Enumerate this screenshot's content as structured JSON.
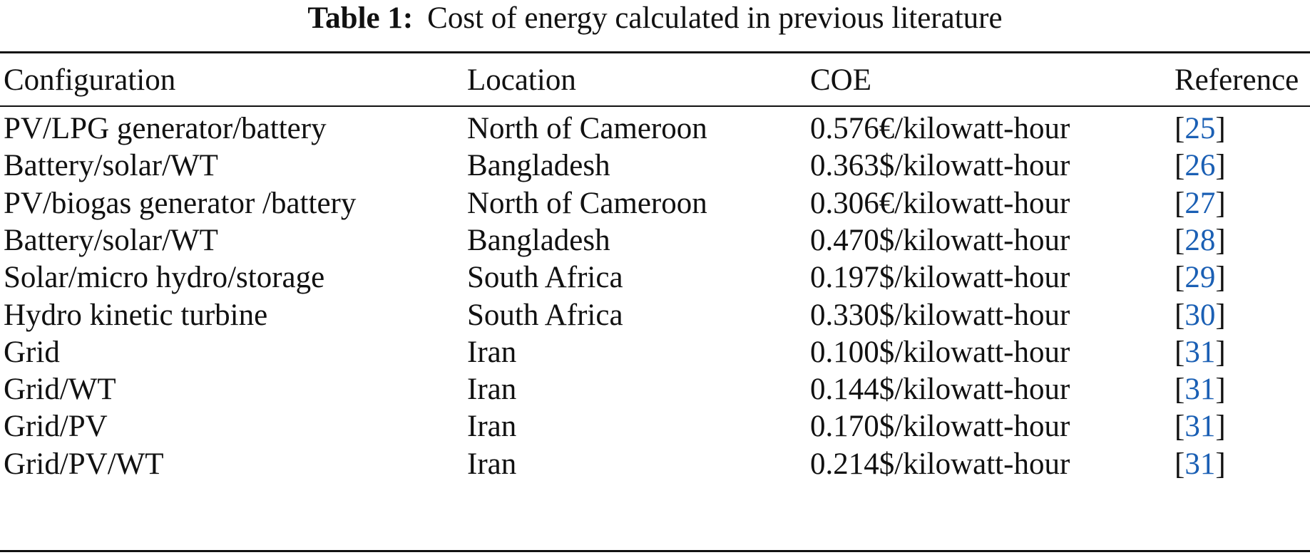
{
  "table": {
    "caption_label": "Table 1:",
    "caption_text": "Cost of energy calculated in previous literature",
    "headers": [
      "Configuration",
      "Location",
      "COE",
      "Reference"
    ],
    "rows": [
      {
        "configuration": "PV/LPG generator/battery",
        "location": "North of Cameroon",
        "coe": "0.576€/kilowatt-hour",
        "ref": "25"
      },
      {
        "configuration": "Battery/solar/WT",
        "location": "Bangladesh",
        "coe": "0.363$/kilowatt-hour",
        "ref": "26"
      },
      {
        "configuration": "PV/biogas generator /battery",
        "location": "North of Cameroon",
        "coe": "0.306€/kilowatt-hour",
        "ref": "27"
      },
      {
        "configuration": "Battery/solar/WT",
        "location": "Bangladesh",
        "coe": "0.470$/kilowatt-hour",
        "ref": "28"
      },
      {
        "configuration": "Solar/micro hydro/storage",
        "location": "South Africa",
        "coe": "0.197$/kilowatt-hour",
        "ref": "29"
      },
      {
        "configuration": "Hydro kinetic turbine",
        "location": "South Africa",
        "coe": "0.330$/kilowatt-hour",
        "ref": "30"
      },
      {
        "configuration": "Grid",
        "location": "Iran",
        "coe": "0.100$/kilowatt-hour",
        "ref": "31"
      },
      {
        "configuration": "Grid/WT",
        "location": "Iran",
        "coe": "0.144$/kilowatt-hour",
        "ref": "31"
      },
      {
        "configuration": "Grid/PV",
        "location": "Iran",
        "coe": "0.170$/kilowatt-hour",
        "ref": "31"
      },
      {
        "configuration": "Grid/PV/WT",
        "location": "Iran",
        "coe": "0.214$/kilowatt-hour",
        "ref": "31"
      }
    ]
  },
  "colors": {
    "text": "#111111",
    "link": "#1a5fb4"
  }
}
